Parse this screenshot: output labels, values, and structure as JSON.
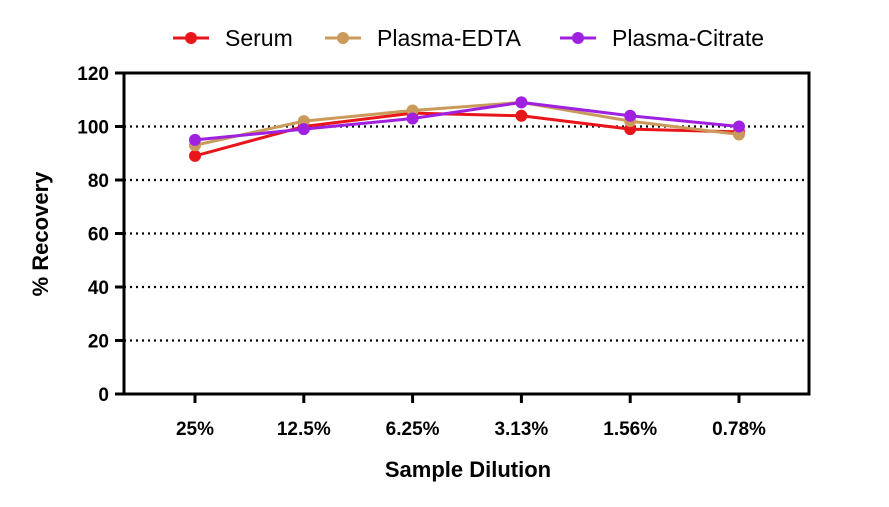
{
  "chart_data": {
    "type": "line",
    "categories": [
      "25%",
      "12.5%",
      "6.25%",
      "3.13%",
      "1.56%",
      "0.78%"
    ],
    "xlabel": "Sample Dilution",
    "ylabel": "% Recovery",
    "ylim": [
      0,
      120
    ],
    "yticks": [
      0,
      20,
      40,
      60,
      80,
      100,
      120
    ],
    "grid": "horizontal dotted",
    "legend_position": "top",
    "series": [
      {
        "name": "Serum",
        "color": "#e8161a",
        "values": [
          89,
          100,
          105,
          104,
          99,
          98
        ]
      },
      {
        "name": "Plasma-EDTA",
        "color": "#c99a5a",
        "values": [
          93,
          102,
          106,
          109,
          102,
          97
        ]
      },
      {
        "name": "Plasma-Citrate",
        "color": "#a020e0",
        "values": [
          95,
          99,
          103,
          109,
          104,
          100
        ]
      }
    ]
  }
}
